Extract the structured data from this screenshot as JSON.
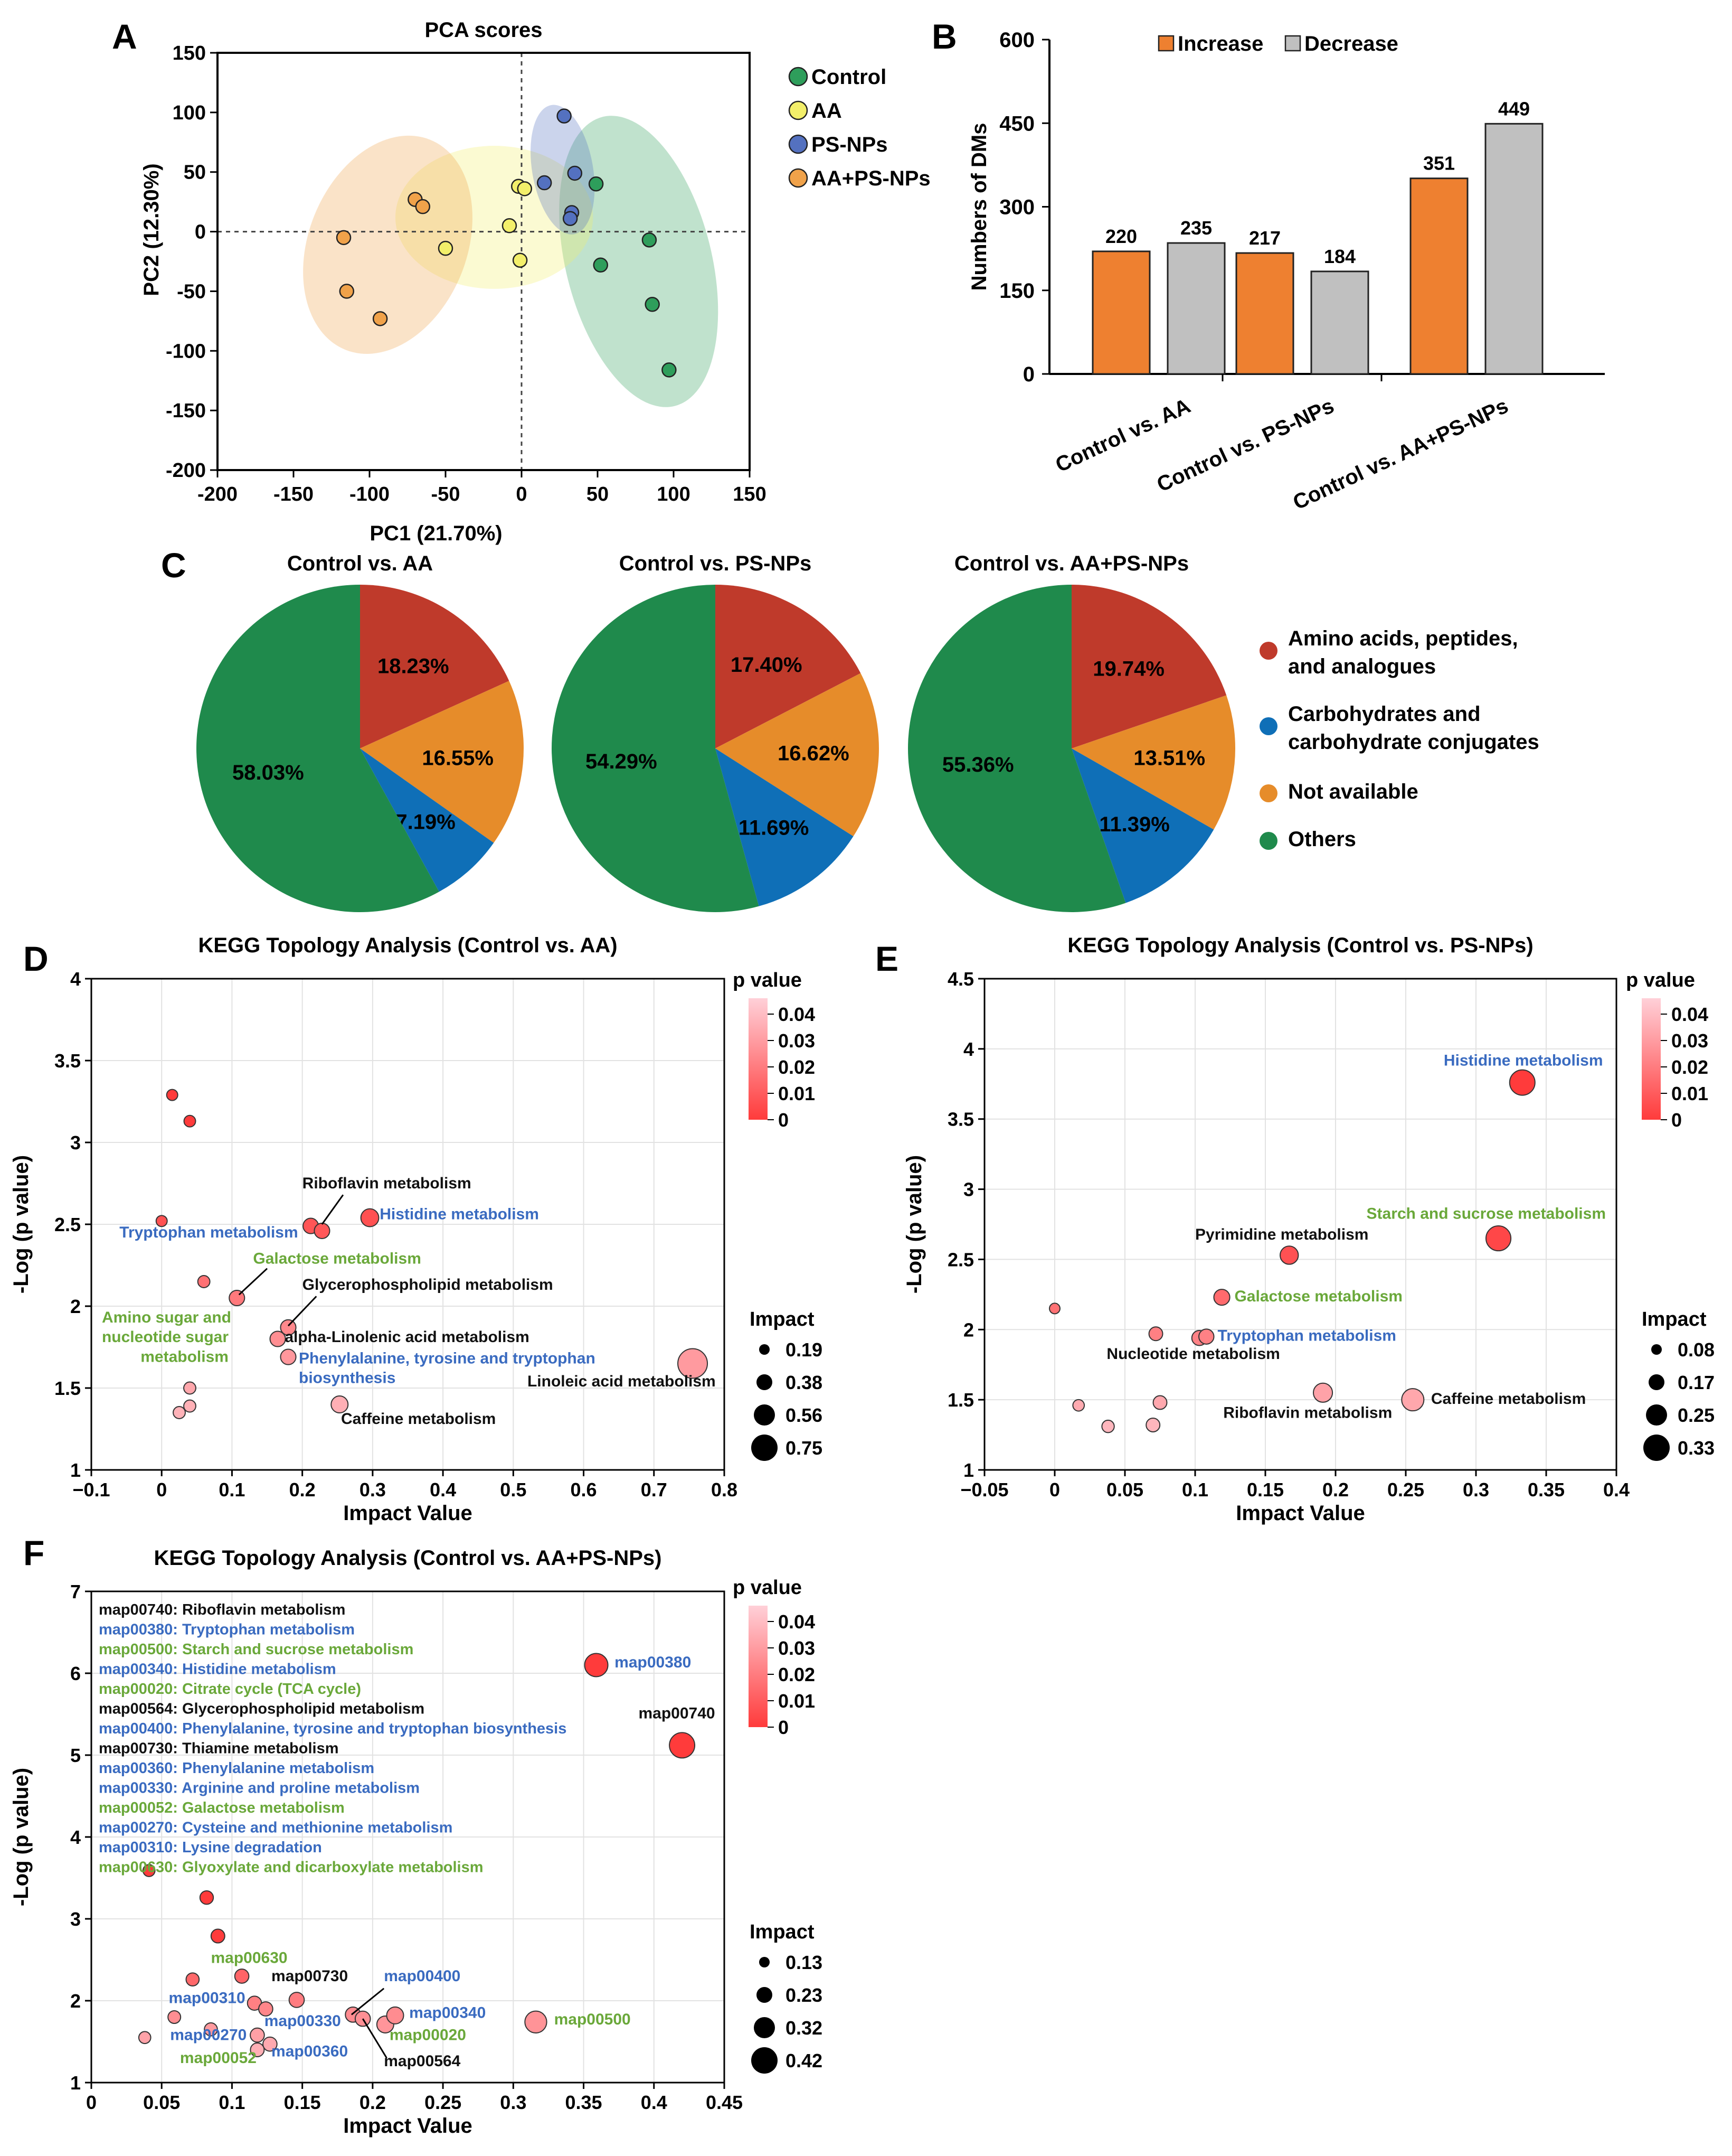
{
  "colors": {
    "control": "#2e9e5b",
    "aa": "#f3ef6a",
    "psnp": "#5471c0",
    "aaps": "#f0a24a",
    "increase": "#ee8030",
    "decrease": "#c0c0c0",
    "pie_amino": "#bf3a2b",
    "pie_carb": "#0f6fb7",
    "pie_na": "#e68c2a",
    "pie_oth": "#1f8a4c",
    "blue_text": "#3a6bc0",
    "green_text": "#6aa83a",
    "black_text": "#111111",
    "bubble_min": "#ff3b3b",
    "bubble_max": "#ffd0d8"
  },
  "panel_labels": {
    "a": "A",
    "b": "B",
    "c": "C",
    "d": "D",
    "e": "E",
    "f": "F"
  },
  "chart_data": [
    {
      "id": "A",
      "type": "scatter",
      "title": "PCA scores",
      "xlabel": "PC1 (21.70%)",
      "ylabel": "PC2 (12.30%)",
      "xlim": [
        -200,
        150
      ],
      "ylim": [
        -200,
        150
      ],
      "xticks": [
        "-200",
        "-150",
        "-100",
        "-50",
        "0",
        "50",
        "100",
        "150"
      ],
      "yticks": [
        "150",
        "100",
        "50",
        "0",
        "-50",
        "-100",
        "-150",
        "-200"
      ],
      "series": [
        {
          "name": "Control",
          "points": [
            [
              49,
              40
            ],
            [
              52,
              -28
            ],
            [
              84,
              -7
            ],
            [
              86,
              -61
            ],
            [
              97,
              -116
            ]
          ]
        },
        {
          "name": "AA",
          "points": [
            [
              -2,
              38
            ],
            [
              2,
              36
            ],
            [
              -8,
              5
            ],
            [
              -1,
              -24
            ],
            [
              -50,
              -14
            ]
          ]
        },
        {
          "name": "PS-NPs",
          "points": [
            [
              28,
              97
            ],
            [
              15,
              41
            ],
            [
              35,
              49
            ],
            [
              33,
              16
            ],
            [
              32,
              11
            ]
          ]
        },
        {
          "name": "AA+PS-NPs",
          "points": [
            [
              -70,
              27
            ],
            [
              -65,
              21
            ],
            [
              -117,
              -5
            ],
            [
              -115,
              -50
            ],
            [
              -93,
              -73
            ]
          ]
        }
      ]
    },
    {
      "id": "B",
      "type": "bar",
      "ylabel": "Numbers of DMs",
      "ylim": [
        0,
        600
      ],
      "yticks": [
        "0",
        "150",
        "300",
        "450",
        "600"
      ],
      "categories": [
        "Control vs. AA",
        "Control vs. PS-NPs",
        "Control vs. AA+PS-NPs"
      ],
      "series": [
        {
          "name": "Increase",
          "values": [
            220,
            217,
            351
          ],
          "labels": [
            "220",
            "217",
            "351"
          ]
        },
        {
          "name": "Decrease",
          "values": [
            235,
            184,
            449
          ],
          "labels": [
            "235",
            "184",
            "449"
          ]
        }
      ]
    },
    {
      "id": "C",
      "type": "pie",
      "legend": [
        "Amino acids, peptides,",
        "and analogues",
        "Carbohydrates and",
        "carbohydrate conjugates",
        "Not available",
        "Others"
      ],
      "pies": [
        {
          "title": "Control vs. AA",
          "values": [
            18.23,
            16.55,
            7.19,
            58.03
          ],
          "labels": [
            "18.23%",
            "16.55%",
            "7.19%",
            "58.03%"
          ]
        },
        {
          "title": "Control vs. PS-NPs",
          "values": [
            17.4,
            16.62,
            11.69,
            54.29
          ],
          "labels": [
            "17.40%",
            "16.62%",
            "11.69%",
            "54.29%"
          ]
        },
        {
          "title": "Control vs. AA+PS-NPs",
          "values": [
            19.74,
            13.51,
            11.39,
            55.36
          ],
          "labels": [
            "19.74%",
            "13.51%",
            "11.39%",
            "55.36%"
          ]
        }
      ]
    },
    {
      "id": "D",
      "type": "scatter",
      "title": "KEGG Topology Analysis (Control vs. AA)",
      "xlabel": "Impact Value",
      "ylabel": "-Log (p value)",
      "xlim": [
        -0.1,
        0.8
      ],
      "ylim": [
        1,
        4
      ],
      "xticks": [
        "−0.1",
        "0",
        "0.1",
        "0.2",
        "0.3",
        "0.4",
        "0.5",
        "0.6",
        "0.7",
        "0.8"
      ],
      "yticks": [
        "1",
        "1.5",
        "2",
        "2.5",
        "3",
        "3.5",
        "4"
      ],
      "pvalue_title": "p value",
      "pvalue_ticks": [
        "0.04",
        "0.03",
        "0.02",
        "0.01",
        "0"
      ],
      "impact_title": "Impact",
      "impact_values": [
        "0.19",
        "0.38",
        "0.56",
        "0.75"
      ],
      "points": [
        [
          0.015,
          3.29,
          0.02
        ],
        [
          0.04,
          3.13,
          0.04
        ],
        [
          0.0,
          2.52,
          0.02
        ],
        [
          0.06,
          2.15,
          0.06
        ],
        [
          0.212,
          2.49,
          0.19
        ],
        [
          0.228,
          2.46,
          0.19
        ],
        [
          0.296,
          2.54,
          0.29
        ],
        [
          0.107,
          2.05,
          0.19
        ],
        [
          0.18,
          1.87,
          0.19
        ],
        [
          0.165,
          1.8,
          0.19
        ],
        [
          0.18,
          1.69,
          0.19
        ],
        [
          0.755,
          1.65,
          0.75
        ],
        [
          0.04,
          1.5,
          0.06
        ],
        [
          0.04,
          1.39,
          0.06
        ],
        [
          0.025,
          1.35,
          0.06
        ],
        [
          0.253,
          1.4,
          0.25
        ]
      ],
      "labels": [
        {
          "text": "Riboflavin metabolism",
          "x": 0.2,
          "y": 2.72,
          "c": "black_text"
        },
        {
          "text": "Histidine metabolism",
          "x": 0.31,
          "y": 2.53,
          "c": "blue_text"
        },
        {
          "text": "Tryptophan metabolism",
          "x": -0.06,
          "y": 2.42,
          "c": "blue_text"
        },
        {
          "text": "Galactose metabolism",
          "x": 0.13,
          "y": 2.26,
          "c": "green_text"
        },
        {
          "text": "Glycerophospholipid metabolism",
          "x": 0.2,
          "y": 2.1,
          "c": "black_text"
        },
        {
          "text": "Amino sugar and",
          "x": -0.085,
          "y": 1.9,
          "c": "green_text"
        },
        {
          "text": "nucleotide sugar",
          "x": -0.085,
          "y": 1.78,
          "c": "green_text"
        },
        {
          "text": "metabolism",
          "x": -0.03,
          "y": 1.66,
          "c": "green_text"
        },
        {
          "text": "alpha-Linolenic acid metabolism",
          "x": 0.175,
          "y": 1.78,
          "c": "black_text"
        },
        {
          "text": "Phenylalanine, tyrosine and tryptophan",
          "x": 0.195,
          "y": 1.65,
          "c": "blue_text"
        },
        {
          "text": "biosynthesis",
          "x": 0.195,
          "y": 1.53,
          "c": "blue_text"
        },
        {
          "text": "Linoleic acid metabolism",
          "x": 0.52,
          "y": 1.51,
          "c": "black_text"
        },
        {
          "text": "Caffeine metabolism",
          "x": 0.255,
          "y": 1.28,
          "c": "black_text"
        }
      ]
    },
    {
      "id": "E",
      "type": "scatter",
      "title": "KEGG Topology Analysis (Control vs. PS-NPs)",
      "xlabel": "Impact Value",
      "ylabel": "-Log (p value)",
      "xlim": [
        -0.05,
        0.4
      ],
      "ylim": [
        1,
        4.5
      ],
      "xticks": [
        "−0.05",
        "0",
        "0.05",
        "0.1",
        "0.15",
        "0.2",
        "0.25",
        "0.3",
        "0.35",
        "0.4"
      ],
      "yticks": [
        "1",
        "1.5",
        "2",
        "2.5",
        "3",
        "3.5",
        "4",
        "4.5"
      ],
      "pvalue_title": "p value",
      "pvalue_ticks": [
        "0.04",
        "0.03",
        "0.02",
        "0.01",
        "0"
      ],
      "impact_title": "Impact",
      "impact_values": [
        "0.08",
        "0.17",
        "0.25",
        "0.33"
      ],
      "points": [
        [
          0.0,
          2.15,
          0.0
        ],
        [
          0.333,
          3.76,
          0.33
        ],
        [
          0.316,
          2.65,
          0.32
        ],
        [
          0.167,
          2.53,
          0.17
        ],
        [
          0.119,
          2.23,
          0.12
        ],
        [
          0.072,
          1.97,
          0.07
        ],
        [
          0.103,
          1.94,
          0.1
        ],
        [
          0.108,
          1.95,
          0.1
        ],
        [
          0.191,
          1.55,
          0.19
        ],
        [
          0.255,
          1.5,
          0.26
        ],
        [
          0.075,
          1.48,
          0.07
        ],
        [
          0.017,
          1.46,
          0.02
        ],
        [
          0.038,
          1.31,
          0.04
        ],
        [
          0.07,
          1.32,
          0.07
        ]
      ],
      "labels": [
        {
          "text": "Histidine metabolism",
          "x": 0.277,
          "y": 3.88,
          "c": "blue_text"
        },
        {
          "text": "Starch and sucrose metabolism",
          "x": 0.222,
          "y": 2.79,
          "c": "green_text"
        },
        {
          "text": "Pyrimidine metabolism",
          "x": 0.1,
          "y": 2.64,
          "c": "black_text"
        },
        {
          "text": "Galactose metabolism",
          "x": 0.128,
          "y": 2.2,
          "c": "green_text"
        },
        {
          "text": "Tryptophan metabolism",
          "x": 0.116,
          "y": 1.92,
          "c": "blue_text"
        },
        {
          "text": "Nucleotide metabolism",
          "x": 0.037,
          "y": 1.79,
          "c": "black_text"
        },
        {
          "text": "Caffeine metabolism",
          "x": 0.268,
          "y": 1.47,
          "c": "black_text"
        },
        {
          "text": "Riboflavin metabolism",
          "x": 0.12,
          "y": 1.37,
          "c": "black_text"
        }
      ]
    },
    {
      "id": "F",
      "type": "scatter",
      "title": "KEGG Topology Analysis (Control vs. AA+PS-NPs)",
      "xlabel": "Impact Value",
      "ylabel": "-Log (p value)",
      "xlim": [
        0,
        0.45
      ],
      "ylim": [
        1,
        7
      ],
      "xticks": [
        "0",
        "0.05",
        "0.1",
        "0.15",
        "0.2",
        "0.25",
        "0.3",
        "0.35",
        "0.4",
        "0.45"
      ],
      "yticks": [
        "1",
        "2",
        "3",
        "4",
        "5",
        "6",
        "7"
      ],
      "pvalue_title": "p value",
      "pvalue_ticks": [
        "0.04",
        "0.03",
        "0.02",
        "0.01",
        "0"
      ],
      "impact_title": "Impact",
      "impact_values": [
        "0.13",
        "0.23",
        "0.32",
        "0.42"
      ],
      "points": [
        [
          0.359,
          6.1,
          0.36
        ],
        [
          0.42,
          5.12,
          0.42
        ],
        [
          0.041,
          3.59,
          0.04
        ],
        [
          0.082,
          3.26,
          0.08
        ],
        [
          0.09,
          2.79,
          0.09
        ],
        [
          0.072,
          2.26,
          0.07
        ],
        [
          0.107,
          2.3,
          0.1
        ],
        [
          0.116,
          1.97,
          0.1
        ],
        [
          0.124,
          1.9,
          0.1
        ],
        [
          0.146,
          2.01,
          0.13
        ],
        [
          0.186,
          1.83,
          0.13
        ],
        [
          0.193,
          1.78,
          0.13
        ],
        [
          0.209,
          1.71,
          0.18
        ],
        [
          0.216,
          1.82,
          0.18
        ],
        [
          0.316,
          1.74,
          0.32
        ],
        [
          0.059,
          1.8,
          0.06
        ],
        [
          0.085,
          1.65,
          0.07
        ],
        [
          0.118,
          1.58,
          0.1
        ],
        [
          0.127,
          1.47,
          0.1
        ],
        [
          0.118,
          1.4,
          0.09
        ],
        [
          0.038,
          1.55,
          0.04
        ]
      ],
      "listing": [
        {
          "text": "map00740: Riboflavin metabolism",
          "c": "black_text"
        },
        {
          "text": "map00380: Tryptophan metabolism",
          "c": "blue_text"
        },
        {
          "text": "map00500: Starch and sucrose metabolism",
          "c": "green_text"
        },
        {
          "text": "map00340: Histidine metabolism",
          "c": "blue_text"
        },
        {
          "text": "map00020: Citrate cycle (TCA cycle)",
          "c": "green_text"
        },
        {
          "text": "map00564: Glycerophospholipid metabolism",
          "c": "black_text"
        },
        {
          "text": "map00400: Phenylalanine, tyrosine and tryptophan biosynthesis",
          "c": "blue_text"
        },
        {
          "text": "map00730: Thiamine metabolism",
          "c": "black_text"
        },
        {
          "text": "map00360: Phenylalanine metabolism",
          "c": "blue_text"
        },
        {
          "text": "map00330: Arginine and proline metabolism",
          "c": "blue_text"
        },
        {
          "text": "map00052: Galactose metabolism",
          "c": "green_text"
        },
        {
          "text": "map00270: Cysteine and methionine metabolism",
          "c": "blue_text"
        },
        {
          "text": "map00310: Lysine degradation",
          "c": "blue_text"
        },
        {
          "text": "map00630: Glyoxylate and dicarboxylate metabolism",
          "c": "green_text"
        }
      ],
      "labels": [
        {
          "text": "map00380",
          "x": 0.372,
          "y": 6.07,
          "c": "blue_text"
        },
        {
          "text": "map00740",
          "x": 0.389,
          "y": 5.45,
          "c": "black_text"
        },
        {
          "text": "map00630",
          "x": 0.085,
          "y": 2.46,
          "c": "green_text"
        },
        {
          "text": "map00730",
          "x": 0.128,
          "y": 2.24,
          "c": "black_text"
        },
        {
          "text": "map00400",
          "x": 0.208,
          "y": 2.24,
          "c": "blue_text"
        },
        {
          "text": "map00310",
          "x": 0.055,
          "y": 1.97,
          "c": "blue_text"
        },
        {
          "text": "map00340",
          "x": 0.226,
          "y": 1.79,
          "c": "blue_text"
        },
        {
          "text": "map00500",
          "x": 0.329,
          "y": 1.71,
          "c": "green_text"
        },
        {
          "text": "map00330",
          "x": 0.123,
          "y": 1.69,
          "c": "blue_text"
        },
        {
          "text": "map00020",
          "x": 0.212,
          "y": 1.52,
          "c": "green_text"
        },
        {
          "text": "map00270",
          "x": 0.056,
          "y": 1.52,
          "c": "blue_text"
        },
        {
          "text": "map00360",
          "x": 0.128,
          "y": 1.32,
          "c": "blue_text"
        },
        {
          "text": "map00564",
          "x": 0.208,
          "y": 1.2,
          "c": "black_text"
        },
        {
          "text": "map00052",
          "x": 0.063,
          "y": 1.24,
          "c": "green_text"
        }
      ]
    }
  ]
}
